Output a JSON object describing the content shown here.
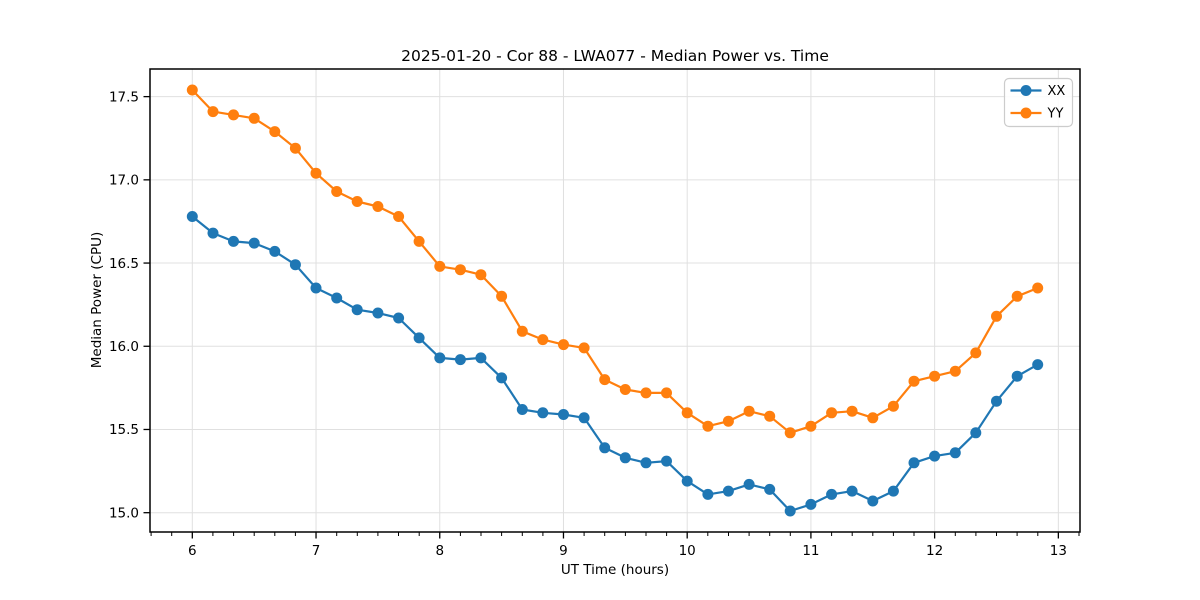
{
  "chart_data": {
    "type": "line",
    "title": "2025-01-20 - Cor 88 - LWA077 - Median Power vs. Time",
    "xlabel": "UT Time (hours)",
    "ylabel": "Median Power (CPU)",
    "x": [
      6.0,
      6.167,
      6.333,
      6.5,
      6.667,
      6.833,
      7.0,
      7.167,
      7.333,
      7.5,
      7.667,
      7.833,
      8.0,
      8.167,
      8.333,
      8.5,
      8.667,
      8.833,
      9.0,
      9.167,
      9.333,
      9.5,
      9.667,
      9.833,
      10.0,
      10.167,
      10.333,
      10.5,
      10.667,
      10.833,
      11.0,
      11.167,
      11.333,
      11.5,
      11.667,
      11.833,
      12.0,
      12.167,
      12.333,
      12.5,
      12.667,
      12.833
    ],
    "series": [
      {
        "name": "XX",
        "color": "#1f77b4",
        "values": [
          16.78,
          16.68,
          16.63,
          16.62,
          16.57,
          16.49,
          16.35,
          16.29,
          16.22,
          16.2,
          16.17,
          16.05,
          15.93,
          15.92,
          15.93,
          15.81,
          15.62,
          15.6,
          15.59,
          15.57,
          15.39,
          15.33,
          15.3,
          15.31,
          15.19,
          15.11,
          15.13,
          15.17,
          15.14,
          15.01,
          15.05,
          15.11,
          15.13,
          15.07,
          15.13,
          15.3,
          15.34,
          15.36,
          15.48,
          15.67,
          15.82,
          15.89
        ]
      },
      {
        "name": "YY",
        "color": "#ff7f0e",
        "values": [
          17.54,
          17.41,
          17.39,
          17.37,
          17.29,
          17.19,
          17.04,
          16.93,
          16.87,
          16.84,
          16.78,
          16.63,
          16.48,
          16.46,
          16.43,
          16.3,
          16.09,
          16.04,
          16.01,
          15.99,
          15.8,
          15.74,
          15.72,
          15.72,
          15.6,
          15.52,
          15.55,
          15.61,
          15.58,
          15.48,
          15.52,
          15.6,
          15.61,
          15.57,
          15.64,
          15.79,
          15.82,
          15.85,
          15.96,
          16.18,
          16.3,
          16.35
        ]
      }
    ],
    "xlim": [
      5.658,
      13.175
    ],
    "ylim": [
      14.884,
      17.666
    ],
    "xticks": [
      6,
      7,
      8,
      9,
      10,
      11,
      12,
      13
    ],
    "yticks": [
      15.0,
      15.5,
      16.0,
      16.5,
      17.0,
      17.5
    ],
    "ytick_decimals": 1,
    "x_minor_step": 0.16667,
    "grid": true,
    "legend_position": "upper right"
  },
  "style": {
    "grid_color": "#e0e0e0",
    "spine_color": "#000000",
    "tick_color": "#000000",
    "legend_border_color": "#cccccc",
    "legend_background": "#ffffff",
    "series_xx_color": "#1f77b4",
    "series_yy_color": "#ff7f0e"
  }
}
